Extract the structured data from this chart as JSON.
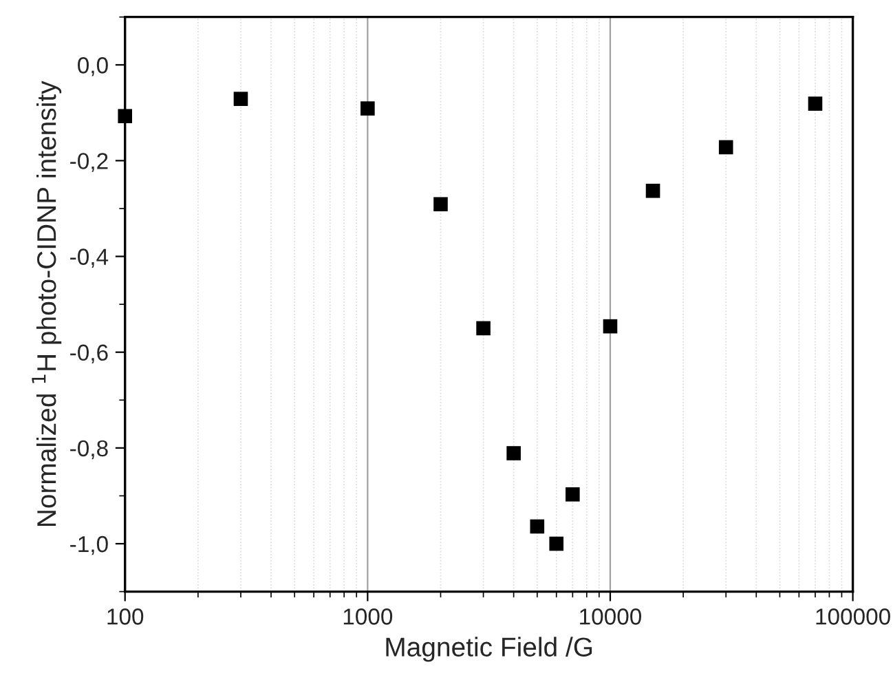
{
  "chart_data": {
    "type": "scatter",
    "xlabel": "Magnetic Field /G",
    "ylabel": "Normalized $^{1}$H photo-CIDNP intensity",
    "log": "x",
    "x": [
      100,
      300,
      1000,
      2000,
      3000,
      4000,
      5000,
      6000,
      7000,
      10000,
      15000,
      30000,
      70000
    ],
    "series": [
      {
        "color": "#000000",
        "values": [
          -0.107,
          -0.071,
          -0.091,
          -0.291,
          -0.55,
          -0.811,
          -0.964,
          -1.0,
          -0.897,
          -0.546,
          -0.263,
          -0.172,
          -0.081
        ]
      }
    ],
    "marker": "square",
    "xlim": [
      100,
      100000
    ],
    "xticks": [
      100,
      1000,
      10000,
      100000
    ],
    "ylim": [
      -1.1,
      0.1
    ],
    "yticks": [
      {
        "value": -1.0,
        "label": "-1,0"
      },
      {
        "value": -0.8,
        "label": "-0,8"
      },
      {
        "value": -0.6,
        "label": "-0,6"
      },
      {
        "value": -0.4,
        "label": "-0,4"
      },
      {
        "value": -0.2,
        "label": "-0,2"
      },
      {
        "value": 0.0,
        "label": "0,0"
      }
    ],
    "grid": "x"
  }
}
